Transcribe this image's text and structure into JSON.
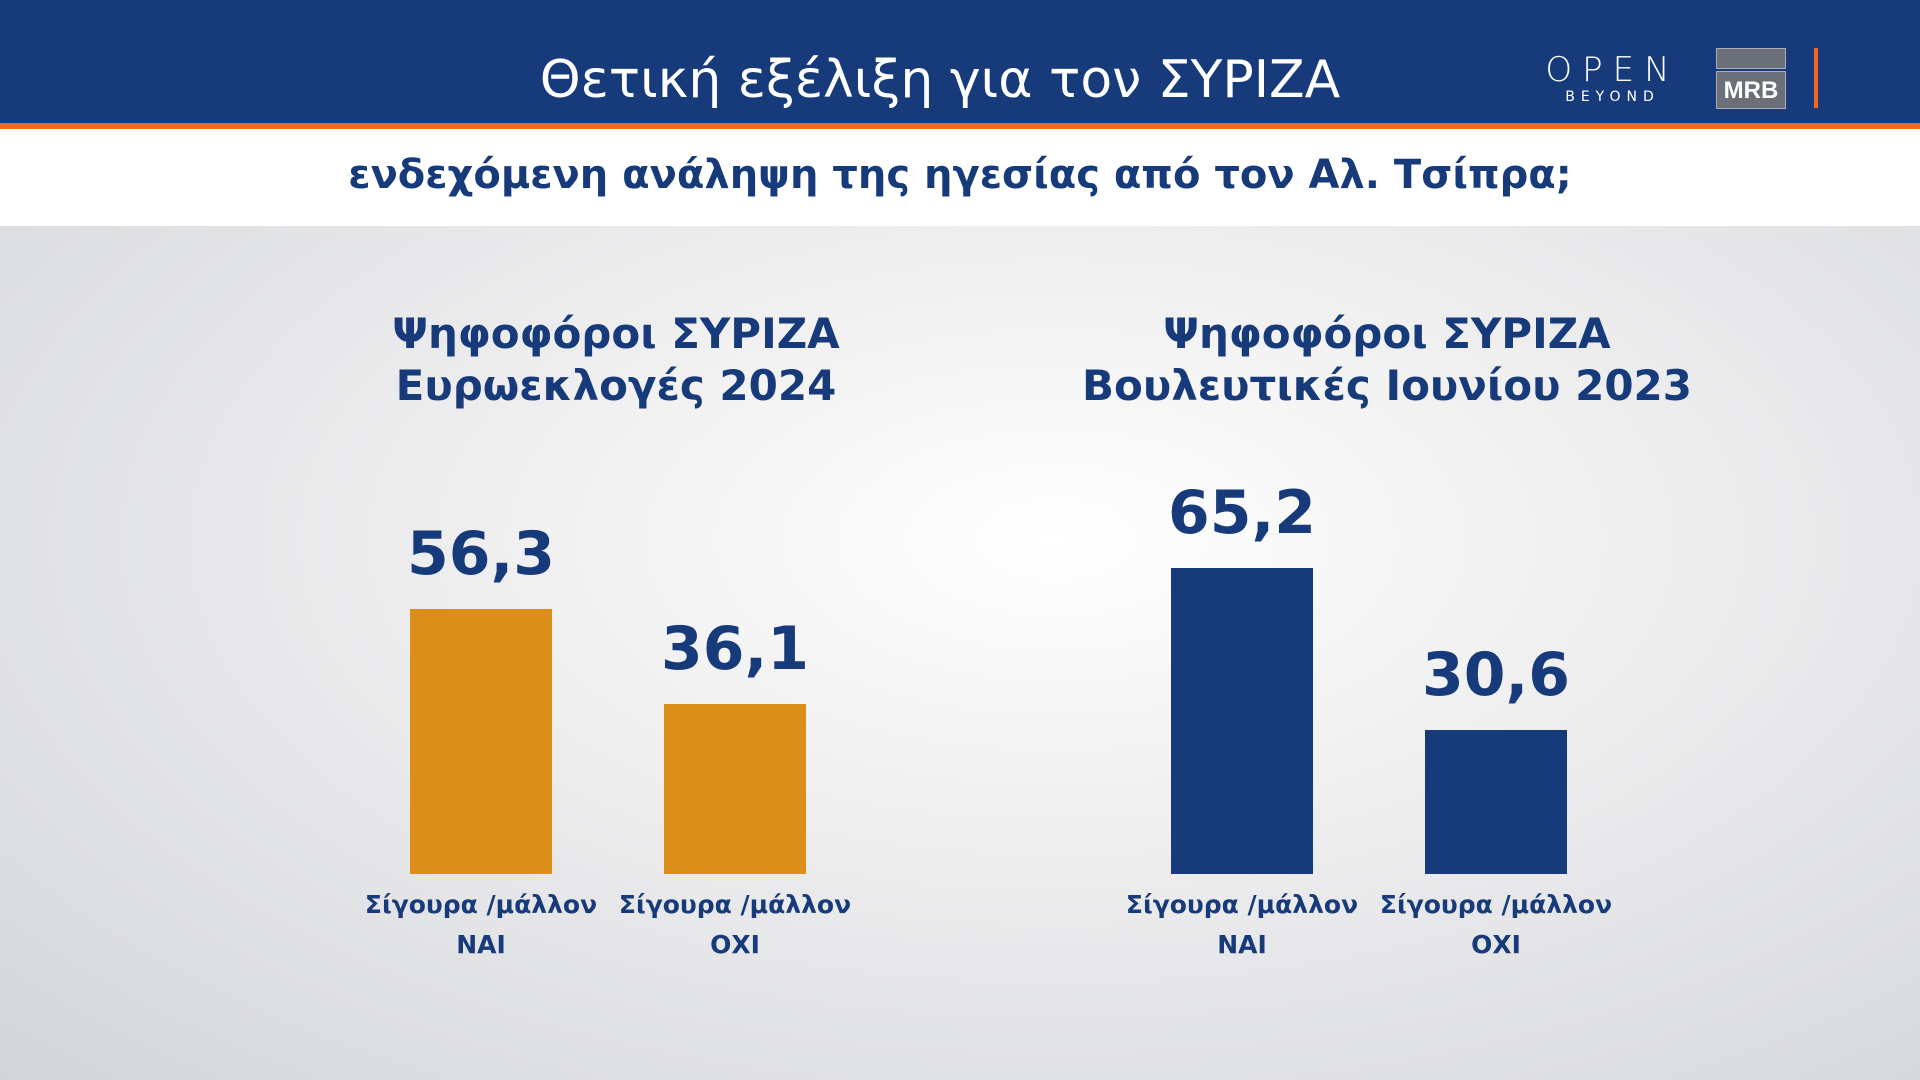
{
  "header": {
    "title": "Θετική εξέλιξη για τον ΣΥΡΙΖΑ",
    "subtitle": "ενδεχόμενη ανάληψη της ηγεσίας από τον Αλ. Τσίπρα;",
    "logo_open": "OPEN",
    "logo_open_tagline": "BEYOND",
    "logo_mrb": "MRB"
  },
  "chart_data": [
    {
      "type": "bar",
      "title_line1": "Ψηφοφόροι ΣΥΡΙΖΑ",
      "title_line2": "Ευρωεκλογές 2024",
      "categories": [
        {
          "line1": "Σίγουρα /μάλλον",
          "line2": "ΝΑΙ"
        },
        {
          "line1": "Σίγουρα /μάλλον",
          "line2": "ΟΧΙ"
        }
      ],
      "values": [
        56.3,
        36.1
      ],
      "value_labels": [
        "56,3",
        "36,1"
      ],
      "color": "#db8f1a"
    },
    {
      "type": "bar",
      "title_line1": "Ψηφοφόροι ΣΥΡΙΖΑ",
      "title_line2": "Βουλευτικές Ιουνίου 2023",
      "categories": [
        {
          "line1": "Σίγουρα /μάλλον",
          "line2": "ΝΑΙ"
        },
        {
          "line1": "Σίγουρα /μάλλον",
          "line2": "ΟΧΙ"
        }
      ],
      "values": [
        65.2,
        30.6
      ],
      "value_labels": [
        "65,2",
        "30,6"
      ],
      "color": "#173b7a"
    }
  ],
  "colors": {
    "header": "#173b7a",
    "accent": "#f26a21"
  }
}
